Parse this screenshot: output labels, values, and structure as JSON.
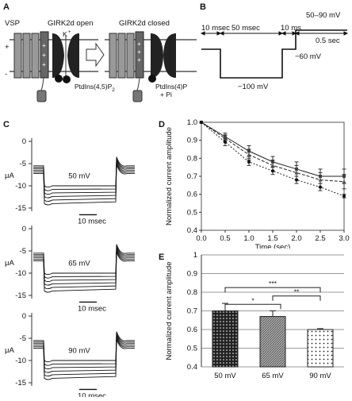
{
  "panels": {
    "A": {
      "label": "A",
      "vsp": "VSP",
      "girk_open": "GIRK2d open",
      "girk_closed": "GIRK2d closed",
      "k_ion": "K",
      "k_charge": "+",
      "plus": "+",
      "minus": "-",
      "pip2": "PtdIns(4,5)P",
      "pip2_sub": "2",
      "pi4p_line1": "PtdIns(4)P",
      "pi4p_line2": "+ Pi"
    },
    "B": {
      "label": "B",
      "seg1": "10 msec",
      "seg2": "50 msec",
      "seg3": "10 ms",
      "step_mv": "50–90 mV",
      "step_dur": "0.5 sec",
      "hold_mv": "−60 mV",
      "hyper_mv": "−100 mV"
    },
    "C": {
      "label": "C",
      "unit": "μA",
      "scalebar": "10 msec",
      "traces": [
        {
          "voltage": "50 mV",
          "ticks": [
            "0",
            "-5",
            "-10",
            "-15"
          ]
        },
        {
          "voltage": "65 mV",
          "ticks": [
            "0",
            "-5",
            "-10",
            "-15"
          ]
        },
        {
          "voltage": "90 mV",
          "ticks": [
            "0",
            "-5",
            "-10",
            "-15"
          ]
        }
      ]
    },
    "D": {
      "label": "D"
    },
    "E": {
      "label": "E",
      "sig1": "*",
      "sig2": "**",
      "sig3": "***"
    }
  },
  "chart_data": [
    {
      "type": "line",
      "panel": "D",
      "xlabel": "Time (sec)",
      "ylabel": "Normalized current amplitude",
      "xlim": [
        0,
        3
      ],
      "ylim": [
        0.4,
        1.0
      ],
      "xticks": [
        "0.0",
        "0.5",
        "1.0",
        "1.5",
        "2.0",
        "2.5",
        "3.0"
      ],
      "yticks": [
        "0.4",
        "0.5",
        "0.6",
        "0.7",
        "0.8",
        "0.9",
        "1.0"
      ],
      "x": [
        0,
        0.5,
        1.0,
        1.5,
        2.0,
        2.5,
        3.0
      ],
      "series": [
        {
          "marker": "square",
          "values": [
            1.0,
            0.92,
            0.84,
            0.78,
            0.74,
            0.7,
            0.7
          ],
          "errors": [
            0,
            0.02,
            0.03,
            0.03,
            0.04,
            0.04,
            0.04
          ]
        },
        {
          "marker": "triangle",
          "values": [
            1.0,
            0.91,
            0.82,
            0.76,
            0.72,
            0.68,
            0.67
          ],
          "errors": [
            0,
            0.02,
            0.03,
            0.03,
            0.04,
            0.04,
            0.04
          ]
        },
        {
          "marker": "circle",
          "values": [
            1.0,
            0.89,
            0.78,
            0.73,
            0.68,
            0.64,
            0.59
          ],
          "errors": [
            0,
            0.02,
            0.02,
            0.02,
            0.02,
            0.02,
            0.01
          ]
        }
      ]
    },
    {
      "type": "bar",
      "panel": "E",
      "ylabel": "Normalized current amplitude",
      "ylim": [
        0.4,
        1.0
      ],
      "yticks": [
        "0.4",
        "0.5",
        "0.6",
        "0.7",
        "0.8",
        "0.9",
        "1"
      ],
      "categories": [
        "50 mV",
        "65 mV",
        "90 mV"
      ],
      "values": [
        0.7,
        0.67,
        0.6
      ],
      "errors": [
        0.04,
        0.03,
        0.005
      ],
      "fills": [
        "#222222",
        "#888888",
        "#dddddd"
      ]
    }
  ]
}
